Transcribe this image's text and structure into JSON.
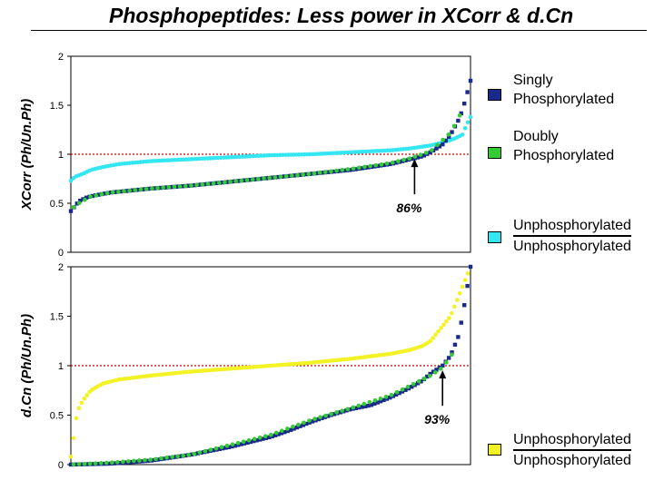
{
  "slide": {
    "title": "Phosphopeptides: Less power in XCorr & d.Cn",
    "legend": [
      {
        "lines": [
          "Singly",
          "Phosphorylated"
        ],
        "color": "#1a2a8c",
        "style": "plain"
      },
      {
        "lines": [
          "Doubly",
          "Phosphorylated"
        ],
        "color": "#33cc33",
        "style": "plain"
      },
      {
        "lines": [
          "Unphosphorylated",
          "Unphosphorylated"
        ],
        "color": "#33e6f2",
        "style": "fraction"
      },
      {
        "lines": [
          "Unphosphorylated",
          "Unphosphorylated"
        ],
        "color": "#f2f224",
        "style": "fraction"
      }
    ]
  },
  "chart_data": [
    {
      "type": "scatter",
      "title": "",
      "xlabel": "",
      "ylabel": "XCorr (Ph/Un.Ph)",
      "ylim": [
        0,
        2
      ],
      "yticks": [
        "0",
        "0.5",
        "1",
        "1.5",
        "2"
      ],
      "reference_line": {
        "y": 1,
        "color": "#cc0000",
        "style": "dotted"
      },
      "annotation": {
        "text": "86%",
        "x": 0.86,
        "y": 0.98
      },
      "colors": {
        "singly": "#1a2a8c",
        "doubly": "#33cc33",
        "unphos": "#33e6f2"
      },
      "series": [
        {
          "role": "unphos",
          "x": [
            0,
            0.01,
            0.03,
            0.05,
            0.08,
            0.12,
            0.2,
            0.3,
            0.4,
            0.5,
            0.6,
            0.7,
            0.8,
            0.85,
            0.9,
            0.93,
            0.96,
            0.98,
            0.99,
            1.0
          ],
          "y": [
            0.73,
            0.77,
            0.8,
            0.84,
            0.87,
            0.9,
            0.93,
            0.95,
            0.97,
            0.99,
            1.0,
            1.02,
            1.04,
            1.06,
            1.09,
            1.12,
            1.16,
            1.2,
            1.3,
            1.38
          ]
        },
        {
          "role": "singly",
          "x": [
            0,
            0.01,
            0.02,
            0.04,
            0.06,
            0.1,
            0.15,
            0.2,
            0.3,
            0.4,
            0.5,
            0.6,
            0.7,
            0.75,
            0.8,
            0.85,
            0.88,
            0.9,
            0.93,
            0.95,
            0.97,
            0.98,
            0.99,
            1.0
          ],
          "y": [
            0.42,
            0.47,
            0.52,
            0.56,
            0.58,
            0.61,
            0.63,
            0.65,
            0.68,
            0.72,
            0.76,
            0.8,
            0.84,
            0.87,
            0.9,
            0.95,
            0.98,
            1.02,
            1.1,
            1.2,
            1.35,
            1.45,
            1.6,
            1.75
          ]
        },
        {
          "role": "doubly",
          "x": [
            0,
            0.02,
            0.05,
            0.1,
            0.2,
            0.3,
            0.4,
            0.5,
            0.6,
            0.7,
            0.8,
            0.85,
            0.9,
            0.95,
            0.98
          ],
          "y": [
            0.44,
            0.5,
            0.57,
            0.61,
            0.65,
            0.68,
            0.72,
            0.76,
            0.8,
            0.85,
            0.91,
            0.96,
            1.03,
            1.22,
            1.45
          ]
        }
      ]
    },
    {
      "type": "scatter",
      "title": "",
      "xlabel": "",
      "ylabel": "d.Cn (Ph/Un.Ph)",
      "ylim": [
        0,
        2
      ],
      "yticks": [
        "0",
        "0.5",
        "1",
        "1.5",
        "2"
      ],
      "reference_line": {
        "y": 1,
        "color": "#cc0000",
        "style": "dotted"
      },
      "annotation": {
        "text": "93%",
        "x": 0.93,
        "y": 0.98
      },
      "colors": {
        "singly": "#1a2a8c",
        "doubly": "#33cc33",
        "unphos": "#f2f224"
      },
      "series": [
        {
          "role": "unphos",
          "x": [
            0,
            0.005,
            0.01,
            0.015,
            0.02,
            0.03,
            0.05,
            0.08,
            0.12,
            0.2,
            0.3,
            0.4,
            0.5,
            0.6,
            0.7,
            0.8,
            0.85,
            0.88,
            0.9,
            0.92,
            0.95,
            0.97,
            0.99,
            1.0
          ],
          "y": [
            0.08,
            0.2,
            0.4,
            0.5,
            0.57,
            0.65,
            0.75,
            0.82,
            0.86,
            0.9,
            0.94,
            0.97,
            1.0,
            1.03,
            1.07,
            1.12,
            1.16,
            1.2,
            1.25,
            1.35,
            1.5,
            1.7,
            1.9,
            2.0
          ]
        },
        {
          "role": "singly",
          "x": [
            0,
            0.1,
            0.2,
            0.3,
            0.4,
            0.5,
            0.55,
            0.6,
            0.65,
            0.7,
            0.75,
            0.8,
            0.85,
            0.88,
            0.9,
            0.93,
            0.95,
            0.97,
            0.98,
            0.99,
            1.0
          ],
          "y": [
            0.0,
            0.01,
            0.04,
            0.1,
            0.18,
            0.28,
            0.35,
            0.43,
            0.5,
            0.56,
            0.6,
            0.68,
            0.78,
            0.85,
            0.92,
            1.0,
            1.1,
            1.3,
            1.5,
            1.75,
            2.0
          ]
        },
        {
          "role": "doubly",
          "x": [
            0,
            0.1,
            0.2,
            0.3,
            0.4,
            0.5,
            0.6,
            0.7,
            0.8,
            0.85,
            0.9,
            0.93,
            0.96
          ],
          "y": [
            0.0,
            0.02,
            0.05,
            0.1,
            0.2,
            0.3,
            0.45,
            0.57,
            0.7,
            0.8,
            0.9,
            0.98,
            1.15
          ]
        }
      ]
    }
  ]
}
